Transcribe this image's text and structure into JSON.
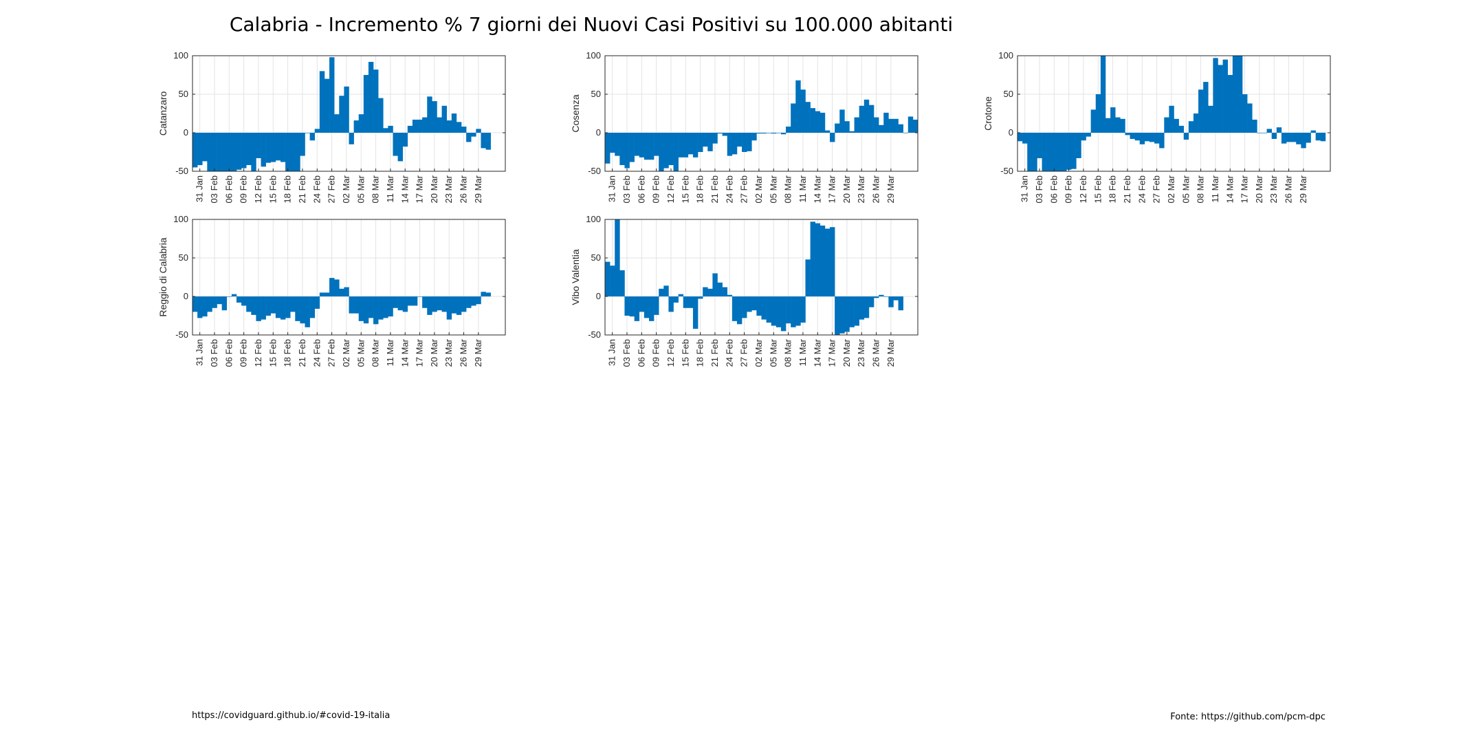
{
  "title": "Calabria - Incremento % 7 giorni dei Nuovi Casi Positivi su 100.000 abitanti",
  "footer_left": "https://covidguard.github.io/#covid-19-italia",
  "footer_right": "Fonte: https://github.com/pcm-dpc",
  "colors": {
    "bar": "#0072bd",
    "grid": "#e3e3e3",
    "axis": "#262626"
  },
  "chart_data": [
    {
      "type": "bar",
      "ylabel": "Catanzaro",
      "ylim": [
        -50,
        100
      ],
      "yticks": [
        -50,
        0,
        50,
        100
      ],
      "grid": true,
      "start_date": "2021-01-30",
      "tick_labels": [
        "31 Jan",
        "03 Feb",
        "06 Feb",
        "09 Feb",
        "12 Feb",
        "15 Feb",
        "18 Feb",
        "21 Feb",
        "24 Feb",
        "27 Feb",
        "02 Mar",
        "05 Mar",
        "08 Mar",
        "11 Mar",
        "14 Mar",
        "17 Mar",
        "20 Mar",
        "23 Mar",
        "26 Mar",
        "29 Mar"
      ],
      "values": [
        -45,
        -42,
        -37,
        -50,
        -50,
        -50,
        -50,
        -50,
        -50,
        -48,
        -46,
        -42,
        -50,
        -33,
        -44,
        -39,
        -38,
        -36,
        -38,
        -50,
        -50,
        -50,
        -30,
        0,
        -10,
        5,
        80,
        70,
        98,
        24,
        48,
        60,
        -15,
        16,
        24,
        75,
        92,
        82,
        45,
        6,
        9,
        -30,
        -37,
        -18,
        9,
        17,
        17,
        20,
        47,
        41,
        20,
        35,
        16,
        25,
        14,
        8,
        -12,
        -5,
        5,
        -20,
        -22
      ]
    },
    {
      "type": "bar",
      "ylabel": "Cosenza",
      "ylim": [
        -50,
        100
      ],
      "yticks": [
        -50,
        0,
        50,
        100
      ],
      "grid": true,
      "start_date": "2021-01-30",
      "tick_labels": [
        "31 Jan",
        "03 Feb",
        "06 Feb",
        "09 Feb",
        "12 Feb",
        "15 Feb",
        "18 Feb",
        "21 Feb",
        "24 Feb",
        "27 Feb",
        "02 Mar",
        "05 Mar",
        "08 Mar",
        "11 Mar",
        "14 Mar",
        "17 Mar",
        "20 Mar",
        "23 Mar",
        "26 Mar",
        "29 Mar"
      ],
      "values": [
        -40,
        -26,
        -30,
        -42,
        -46,
        -38,
        -30,
        -32,
        -35,
        -35,
        -30,
        -50,
        -46,
        -42,
        -50,
        -32,
        -32,
        -28,
        -32,
        -25,
        -18,
        -24,
        -14,
        -1,
        -4,
        -30,
        -28,
        -18,
        -25,
        -24,
        -10,
        -1,
        -1,
        0,
        -1,
        0,
        -2,
        8,
        38,
        68,
        56,
        40,
        32,
        28,
        26,
        3,
        -12,
        12,
        30,
        15,
        2,
        20,
        35,
        43,
        36,
        20,
        10,
        26,
        18,
        18,
        11,
        0,
        21,
        17
      ]
    },
    {
      "type": "bar",
      "ylabel": "Crotone",
      "ylim": [
        -50,
        100
      ],
      "yticks": [
        -50,
        0,
        50,
        100
      ],
      "grid": true,
      "start_date": "2021-01-30",
      "tick_labels": [
        "31 Jan",
        "03 Feb",
        "06 Feb",
        "09 Feb",
        "12 Feb",
        "15 Feb",
        "18 Feb",
        "21 Feb",
        "24 Feb",
        "27 Feb",
        "02 Mar",
        "05 Mar",
        "08 Mar",
        "11 Mar",
        "14 Mar",
        "17 Mar",
        "20 Mar",
        "23 Mar",
        "26 Mar",
        "29 Mar"
      ],
      "values": [
        -11,
        -14,
        -50,
        -50,
        -33,
        -50,
        -50,
        -50,
        -50,
        -50,
        -48,
        -47,
        -33,
        -10,
        -5,
        30,
        50,
        100,
        19,
        33,
        20,
        18,
        -3,
        -8,
        -10,
        -15,
        -11,
        -12,
        -14,
        -20,
        20,
        35,
        18,
        9,
        -9,
        15,
        25,
        56,
        66,
        35,
        97,
        88,
        95,
        75,
        100,
        100,
        50,
        38,
        17,
        0,
        0,
        5,
        -8,
        7,
        -14,
        -12,
        -12,
        -15,
        -20,
        -13,
        3,
        -10,
        -11
      ]
    },
    {
      "type": "bar",
      "ylabel": "Reggio di Calabria",
      "ylim": [
        -50,
        100
      ],
      "yticks": [
        -50,
        0,
        50,
        100
      ],
      "grid": true,
      "start_date": "2021-01-30",
      "tick_labels": [
        "31 Jan",
        "03 Feb",
        "06 Feb",
        "09 Feb",
        "12 Feb",
        "15 Feb",
        "18 Feb",
        "21 Feb",
        "24 Feb",
        "27 Feb",
        "02 Mar",
        "05 Mar",
        "08 Mar",
        "11 Mar",
        "14 Mar",
        "17 Mar",
        "20 Mar",
        "23 Mar",
        "26 Mar",
        "29 Mar"
      ],
      "values": [
        -20,
        -28,
        -26,
        -20,
        -15,
        -10,
        -18,
        0,
        3,
        -8,
        -12,
        -20,
        -24,
        -32,
        -30,
        -25,
        -22,
        -28,
        -30,
        -28,
        -20,
        -32,
        -35,
        -40,
        -28,
        -16,
        5,
        5,
        24,
        22,
        10,
        12,
        -22,
        -22,
        -32,
        -35,
        -28,
        -36,
        -30,
        -28,
        -26,
        -15,
        -18,
        -20,
        -12,
        -12,
        0,
        -15,
        -24,
        -20,
        -18,
        -20,
        -30,
        -22,
        -24,
        -20,
        -15,
        -12,
        -10,
        6,
        5
      ]
    },
    {
      "type": "bar",
      "ylabel": "Vibo Valentia",
      "ylim": [
        -50,
        100
      ],
      "yticks": [
        -50,
        0,
        50,
        100
      ],
      "grid": true,
      "start_date": "2021-01-30",
      "tick_labels": [
        "31 Jan",
        "03 Feb",
        "06 Feb",
        "09 Feb",
        "12 Feb",
        "15 Feb",
        "18 Feb",
        "21 Feb",
        "24 Feb",
        "27 Feb",
        "02 Mar",
        "05 Mar",
        "08 Mar",
        "11 Mar",
        "14 Mar",
        "17 Mar",
        "20 Mar",
        "23 Mar",
        "26 Mar",
        "29 Mar"
      ],
      "values": [
        45,
        40,
        100,
        34,
        -25,
        -26,
        -32,
        -20,
        -28,
        -32,
        -24,
        10,
        14,
        -20,
        -8,
        3,
        -15,
        -15,
        -42,
        -3,
        12,
        10,
        30,
        18,
        12,
        2,
        -32,
        -36,
        -28,
        -20,
        -18,
        -25,
        -30,
        -34,
        -38,
        -40,
        -45,
        -35,
        -40,
        -38,
        -34,
        48,
        97,
        95,
        92,
        88,
        90,
        -50,
        -48,
        -46,
        -40,
        -38,
        -30,
        -28,
        -14,
        -2,
        2,
        0,
        -14,
        -5,
        -18
      ]
    }
  ]
}
